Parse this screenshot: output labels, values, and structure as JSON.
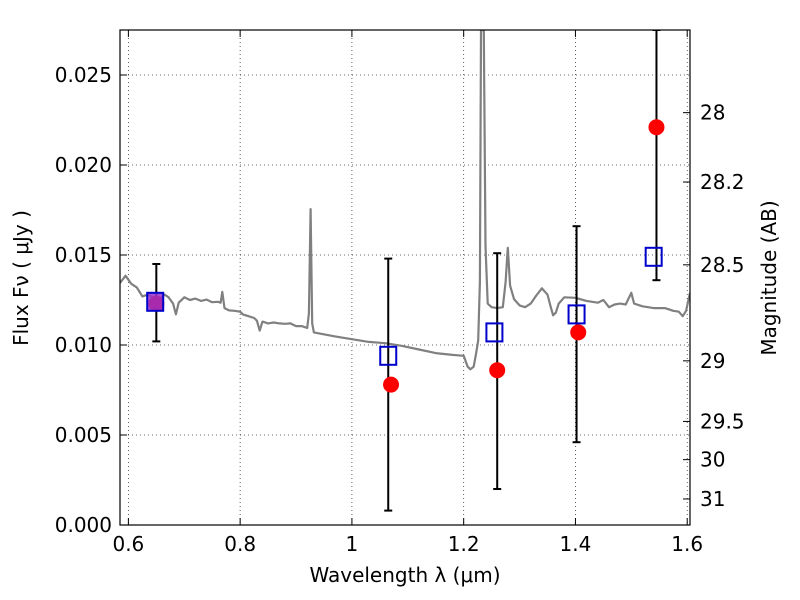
{
  "chart_data": {
    "type": "scatter",
    "xlabel": "Wavelength  λ (μm)",
    "ylabel": "Flux  Fν  ( μJy )",
    "y2label": "Magnitude (AB)",
    "xlim": [
      0.585,
      1.605
    ],
    "ylim": [
      0.0,
      0.0275
    ],
    "grid": true,
    "x_ticks": [
      {
        "value": 0.6,
        "label": "0.6"
      },
      {
        "value": 0.8,
        "label": "0.8"
      },
      {
        "value": 1.0,
        "label": "1"
      },
      {
        "value": 1.2,
        "label": "1.2"
      },
      {
        "value": 1.4,
        "label": "1.4"
      },
      {
        "value": 1.6,
        "label": "1.6"
      }
    ],
    "y_ticks": [
      {
        "value": 0.0,
        "label": "0.000"
      },
      {
        "value": 0.005,
        "label": "0.005"
      },
      {
        "value": 0.01,
        "label": "0.010"
      },
      {
        "value": 0.015,
        "label": "0.015"
      },
      {
        "value": 0.02,
        "label": "0.020"
      },
      {
        "value": 0.025,
        "label": "0.025"
      }
    ],
    "y2_ticks": [
      {
        "value": 28.0,
        "label": "28"
      },
      {
        "value": 28.2,
        "label": "28.2"
      },
      {
        "value": 28.5,
        "label": "28.5"
      },
      {
        "value": 29.0,
        "label": "29"
      },
      {
        "value": 29.5,
        "label": "29.5"
      },
      {
        "value": 30.0,
        "label": "30"
      },
      {
        "value": 31.0,
        "label": "31"
      }
    ],
    "series": [
      {
        "kind": "line",
        "color": "#808080",
        "points": [
          [
            0.585,
            0.01345
          ],
          [
            0.595,
            0.01385
          ],
          [
            0.605,
            0.0134
          ],
          [
            0.615,
            0.0132
          ],
          [
            0.625,
            0.0127
          ],
          [
            0.635,
            0.0128
          ],
          [
            0.645,
            0.01262
          ],
          [
            0.655,
            0.0125
          ],
          [
            0.665,
            0.0128
          ],
          [
            0.672,
            0.01265
          ],
          [
            0.68,
            0.0123
          ],
          [
            0.685,
            0.0117
          ],
          [
            0.69,
            0.01235
          ],
          [
            0.7,
            0.01265
          ],
          [
            0.71,
            0.0125
          ],
          [
            0.72,
            0.01258
          ],
          [
            0.73,
            0.01245
          ],
          [
            0.74,
            0.01252
          ],
          [
            0.75,
            0.01238
          ],
          [
            0.76,
            0.0124
          ],
          [
            0.765,
            0.01235
          ],
          [
            0.768,
            0.01295
          ],
          [
            0.772,
            0.01205
          ],
          [
            0.78,
            0.01192
          ],
          [
            0.79,
            0.0119
          ],
          [
            0.8,
            0.01185
          ],
          [
            0.805,
            0.0117
          ],
          [
            0.815,
            0.0116
          ],
          [
            0.825,
            0.0115
          ],
          [
            0.83,
            0.01135
          ],
          [
            0.835,
            0.0108
          ],
          [
            0.84,
            0.0113
          ],
          [
            0.85,
            0.0112
          ],
          [
            0.86,
            0.01125
          ],
          [
            0.87,
            0.0112
          ],
          [
            0.88,
            0.01118
          ],
          [
            0.89,
            0.0112
          ],
          [
            0.9,
            0.01105
          ],
          [
            0.91,
            0.01105
          ],
          [
            0.92,
            0.01095
          ],
          [
            0.923,
            0.01175
          ],
          [
            0.926,
            0.01755
          ],
          [
            0.929,
            0.0112
          ],
          [
            0.932,
            0.0107
          ],
          [
            0.94,
            0.01065
          ],
          [
            0.97,
            0.01048
          ],
          [
            1.0,
            0.01032
          ],
          [
            1.03,
            0.01017
          ],
          [
            1.06,
            0.0101
          ],
          [
            1.09,
            0.00995
          ],
          [
            1.12,
            0.00975
          ],
          [
            1.15,
            0.00955
          ],
          [
            1.18,
            0.00945
          ],
          [
            1.2,
            0.0094
          ],
          [
            1.207,
            0.0088
          ],
          [
            1.212,
            0.00865
          ],
          [
            1.218,
            0.0088
          ],
          [
            1.222,
            0.0095
          ],
          [
            1.226,
            0.01025
          ],
          [
            1.229,
            0.0135
          ],
          [
            1.231,
            0.0275
          ],
          [
            1.236,
            0.0275
          ],
          [
            1.239,
            0.0155
          ],
          [
            1.243,
            0.0123
          ],
          [
            1.25,
            0.0121
          ],
          [
            1.26,
            0.01205
          ],
          [
            1.27,
            0.0121
          ],
          [
            1.275,
            0.0135
          ],
          [
            1.279,
            0.0154
          ],
          [
            1.283,
            0.0133
          ],
          [
            1.29,
            0.01255
          ],
          [
            1.3,
            0.0122
          ],
          [
            1.31,
            0.0121
          ],
          [
            1.32,
            0.0123
          ],
          [
            1.33,
            0.01275
          ],
          [
            1.34,
            0.01315
          ],
          [
            1.35,
            0.0128
          ],
          [
            1.355,
            0.0122
          ],
          [
            1.36,
            0.01165
          ],
          [
            1.365,
            0.0118
          ],
          [
            1.37,
            0.0123
          ],
          [
            1.38,
            0.01265
          ],
          [
            1.4,
            0.01262
          ],
          [
            1.42,
            0.01245
          ],
          [
            1.44,
            0.01235
          ],
          [
            1.45,
            0.0125
          ],
          [
            1.46,
            0.0121
          ],
          [
            1.47,
            0.01225
          ],
          [
            1.48,
            0.0123
          ],
          [
            1.49,
            0.01225
          ],
          [
            1.5,
            0.0129
          ],
          [
            1.505,
            0.0123
          ],
          [
            1.52,
            0.01215
          ],
          [
            1.54,
            0.01205
          ],
          [
            1.56,
            0.01205
          ],
          [
            1.575,
            0.0119
          ],
          [
            1.585,
            0.01185
          ],
          [
            1.592,
            0.0116
          ],
          [
            1.598,
            0.0119
          ],
          [
            1.605,
            0.0129
          ]
        ]
      },
      {
        "kind": "scatter",
        "marker": "circle",
        "color": "#ff0000",
        "points": [
          {
            "x": 0.65,
            "y": 0.0123
          },
          {
            "x": 1.07,
            "y": 0.0078
          },
          {
            "x": 1.26,
            "y": 0.0086
          },
          {
            "x": 1.405,
            "y": 0.0107
          },
          {
            "x": 1.545,
            "y": 0.0221
          }
        ]
      },
      {
        "kind": "scatter",
        "marker": "square-open",
        "color": "#0000cc",
        "points": [
          {
            "x": 0.648,
            "y": 0.0124
          },
          {
            "x": 1.065,
            "y": 0.0094
          },
          {
            "x": 1.255,
            "y": 0.0107
          },
          {
            "x": 1.402,
            "y": 0.0117
          },
          {
            "x": 1.54,
            "y": 0.0149
          }
        ]
      },
      {
        "kind": "errorbar",
        "color": "#000000",
        "bars": [
          {
            "x": 0.65,
            "low": 0.0102,
            "high": 0.0145
          },
          {
            "x": 1.065,
            "low": 0.0008,
            "high": 0.0148
          },
          {
            "x": 1.26,
            "low": 0.002,
            "high": 0.0151
          },
          {
            "x": 1.402,
            "low": 0.0046,
            "high": 0.0166
          },
          {
            "x": 1.545,
            "low": 0.0136,
            "high": 0.0275
          }
        ]
      }
    ]
  }
}
